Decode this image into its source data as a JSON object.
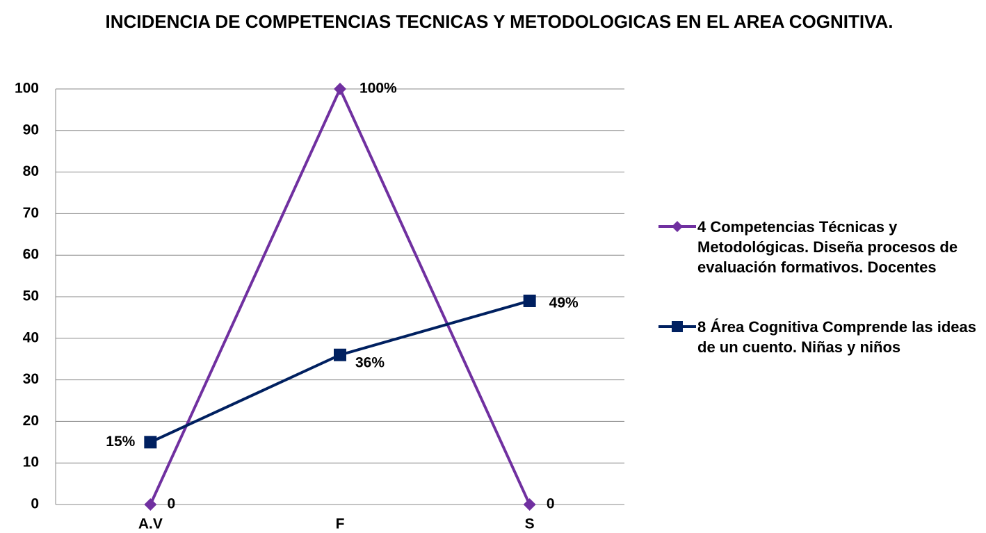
{
  "chart_data": {
    "type": "line",
    "title": "INCIDENCIA DE COMPETENCIAS TECNICAS Y METODOLOGICAS EN EL AREA COGNITIVA.",
    "categories": [
      "A.V",
      "F",
      "S"
    ],
    "series": [
      {
        "name": "4 Competencias Técnicas y Metodológicas. Diseña procesos de evaluación formativos.  Docentes",
        "color": "#7030a0",
        "marker": "diamond",
        "values": [
          0,
          100,
          0
        ],
        "value_labels": [
          "0",
          "100%",
          "0"
        ]
      },
      {
        "name": "8 Área Cognitiva Comprende las ideas de un cuento. Niñas y niños",
        "color": "#002060",
        "marker": "square",
        "values": [
          15,
          36,
          49
        ],
        "value_labels": [
          "15%",
          "36%",
          "49%"
        ]
      }
    ],
    "ylim": [
      0,
      100
    ],
    "yticks": [
      0,
      10,
      20,
      30,
      40,
      50,
      60,
      70,
      80,
      90,
      100
    ],
    "grid": true,
    "legend": "right"
  }
}
